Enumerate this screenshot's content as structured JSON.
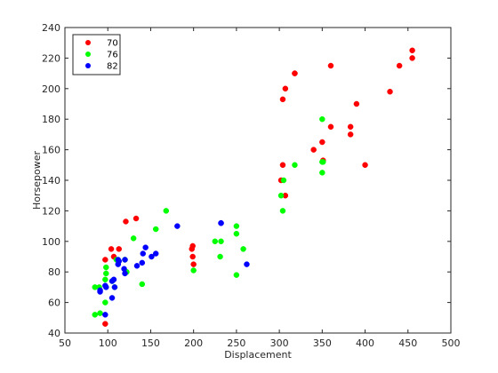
{
  "chart_data": {
    "type": "scatter",
    "title": "",
    "xlabel": "Displacement",
    "ylabel": "Horsepower",
    "xlim": [
      50,
      500
    ],
    "ylim": [
      40,
      240
    ],
    "xticks": [
      50,
      100,
      150,
      200,
      250,
      300,
      350,
      400,
      450,
      500
    ],
    "yticks": [
      40,
      60,
      80,
      100,
      120,
      140,
      160,
      180,
      200,
      220,
      240
    ],
    "grid": false,
    "legend_position": "top-left",
    "series": [
      {
        "name": "70",
        "color": "#ff0000",
        "points": [
          [
            97,
            46
          ],
          [
            97,
            88
          ],
          [
            104,
            95
          ],
          [
            107,
            90
          ],
          [
            113,
            95
          ],
          [
            121,
            113
          ],
          [
            133,
            115
          ],
          [
            198,
            95
          ],
          [
            199,
            97
          ],
          [
            199,
            90
          ],
          [
            200,
            85
          ],
          [
            302,
            140
          ],
          [
            304,
            150
          ],
          [
            304,
            193
          ],
          [
            307,
            200
          ],
          [
            307,
            130
          ],
          [
            318,
            210
          ],
          [
            318,
            210
          ],
          [
            340,
            160
          ],
          [
            350,
            165
          ],
          [
            351,
            153
          ],
          [
            360,
            215
          ],
          [
            360,
            175
          ],
          [
            383,
            170
          ],
          [
            383,
            175
          ],
          [
            390,
            190
          ],
          [
            400,
            150
          ],
          [
            429,
            198
          ],
          [
            440,
            215
          ],
          [
            455,
            225
          ],
          [
            455,
            220
          ]
        ]
      },
      {
        "name": "76",
        "color": "#00ff00",
        "points": [
          [
            85,
            52
          ],
          [
            85,
            70
          ],
          [
            90,
            70
          ],
          [
            91,
            53
          ],
          [
            97,
            60
          ],
          [
            97,
            75
          ],
          [
            98,
            79
          ],
          [
            98,
            83
          ],
          [
            105,
            74
          ],
          [
            108,
            70
          ],
          [
            110,
            88
          ],
          [
            120,
            88
          ],
          [
            122,
            80
          ],
          [
            130,
            102
          ],
          [
            140,
            72
          ],
          [
            156,
            108
          ],
          [
            168,
            120
          ],
          [
            200,
            81
          ],
          [
            225,
            100
          ],
          [
            231,
            90
          ],
          [
            232,
            100
          ],
          [
            250,
            105
          ],
          [
            250,
            110
          ],
          [
            250,
            78
          ],
          [
            258,
            95
          ],
          [
            302,
            130
          ],
          [
            304,
            120
          ],
          [
            305,
            140
          ],
          [
            318,
            150
          ],
          [
            350,
            145
          ],
          [
            350,
            152
          ],
          [
            350,
            180
          ],
          [
            351,
            152
          ]
        ]
      },
      {
        "name": "82",
        "color": "#0000ff",
        "points": [
          [
            91,
            68
          ],
          [
            91,
            67
          ],
          [
            97,
            52
          ],
          [
            97,
            71
          ],
          [
            98,
            70
          ],
          [
            105,
            63
          ],
          [
            105,
            74
          ],
          [
            107,
            75
          ],
          [
            108,
            70
          ],
          [
            112,
            85
          ],
          [
            112,
            88
          ],
          [
            113,
            87
          ],
          [
            119,
            82
          ],
          [
            120,
            79
          ],
          [
            120,
            88
          ],
          [
            134,
            84
          ],
          [
            140,
            86
          ],
          [
            141,
            92
          ],
          [
            144,
            96
          ],
          [
            151,
            90
          ],
          [
            156,
            92
          ],
          [
            181,
            110
          ],
          [
            232,
            112
          ],
          [
            232,
            112
          ],
          [
            262,
            85
          ]
        ]
      }
    ]
  }
}
